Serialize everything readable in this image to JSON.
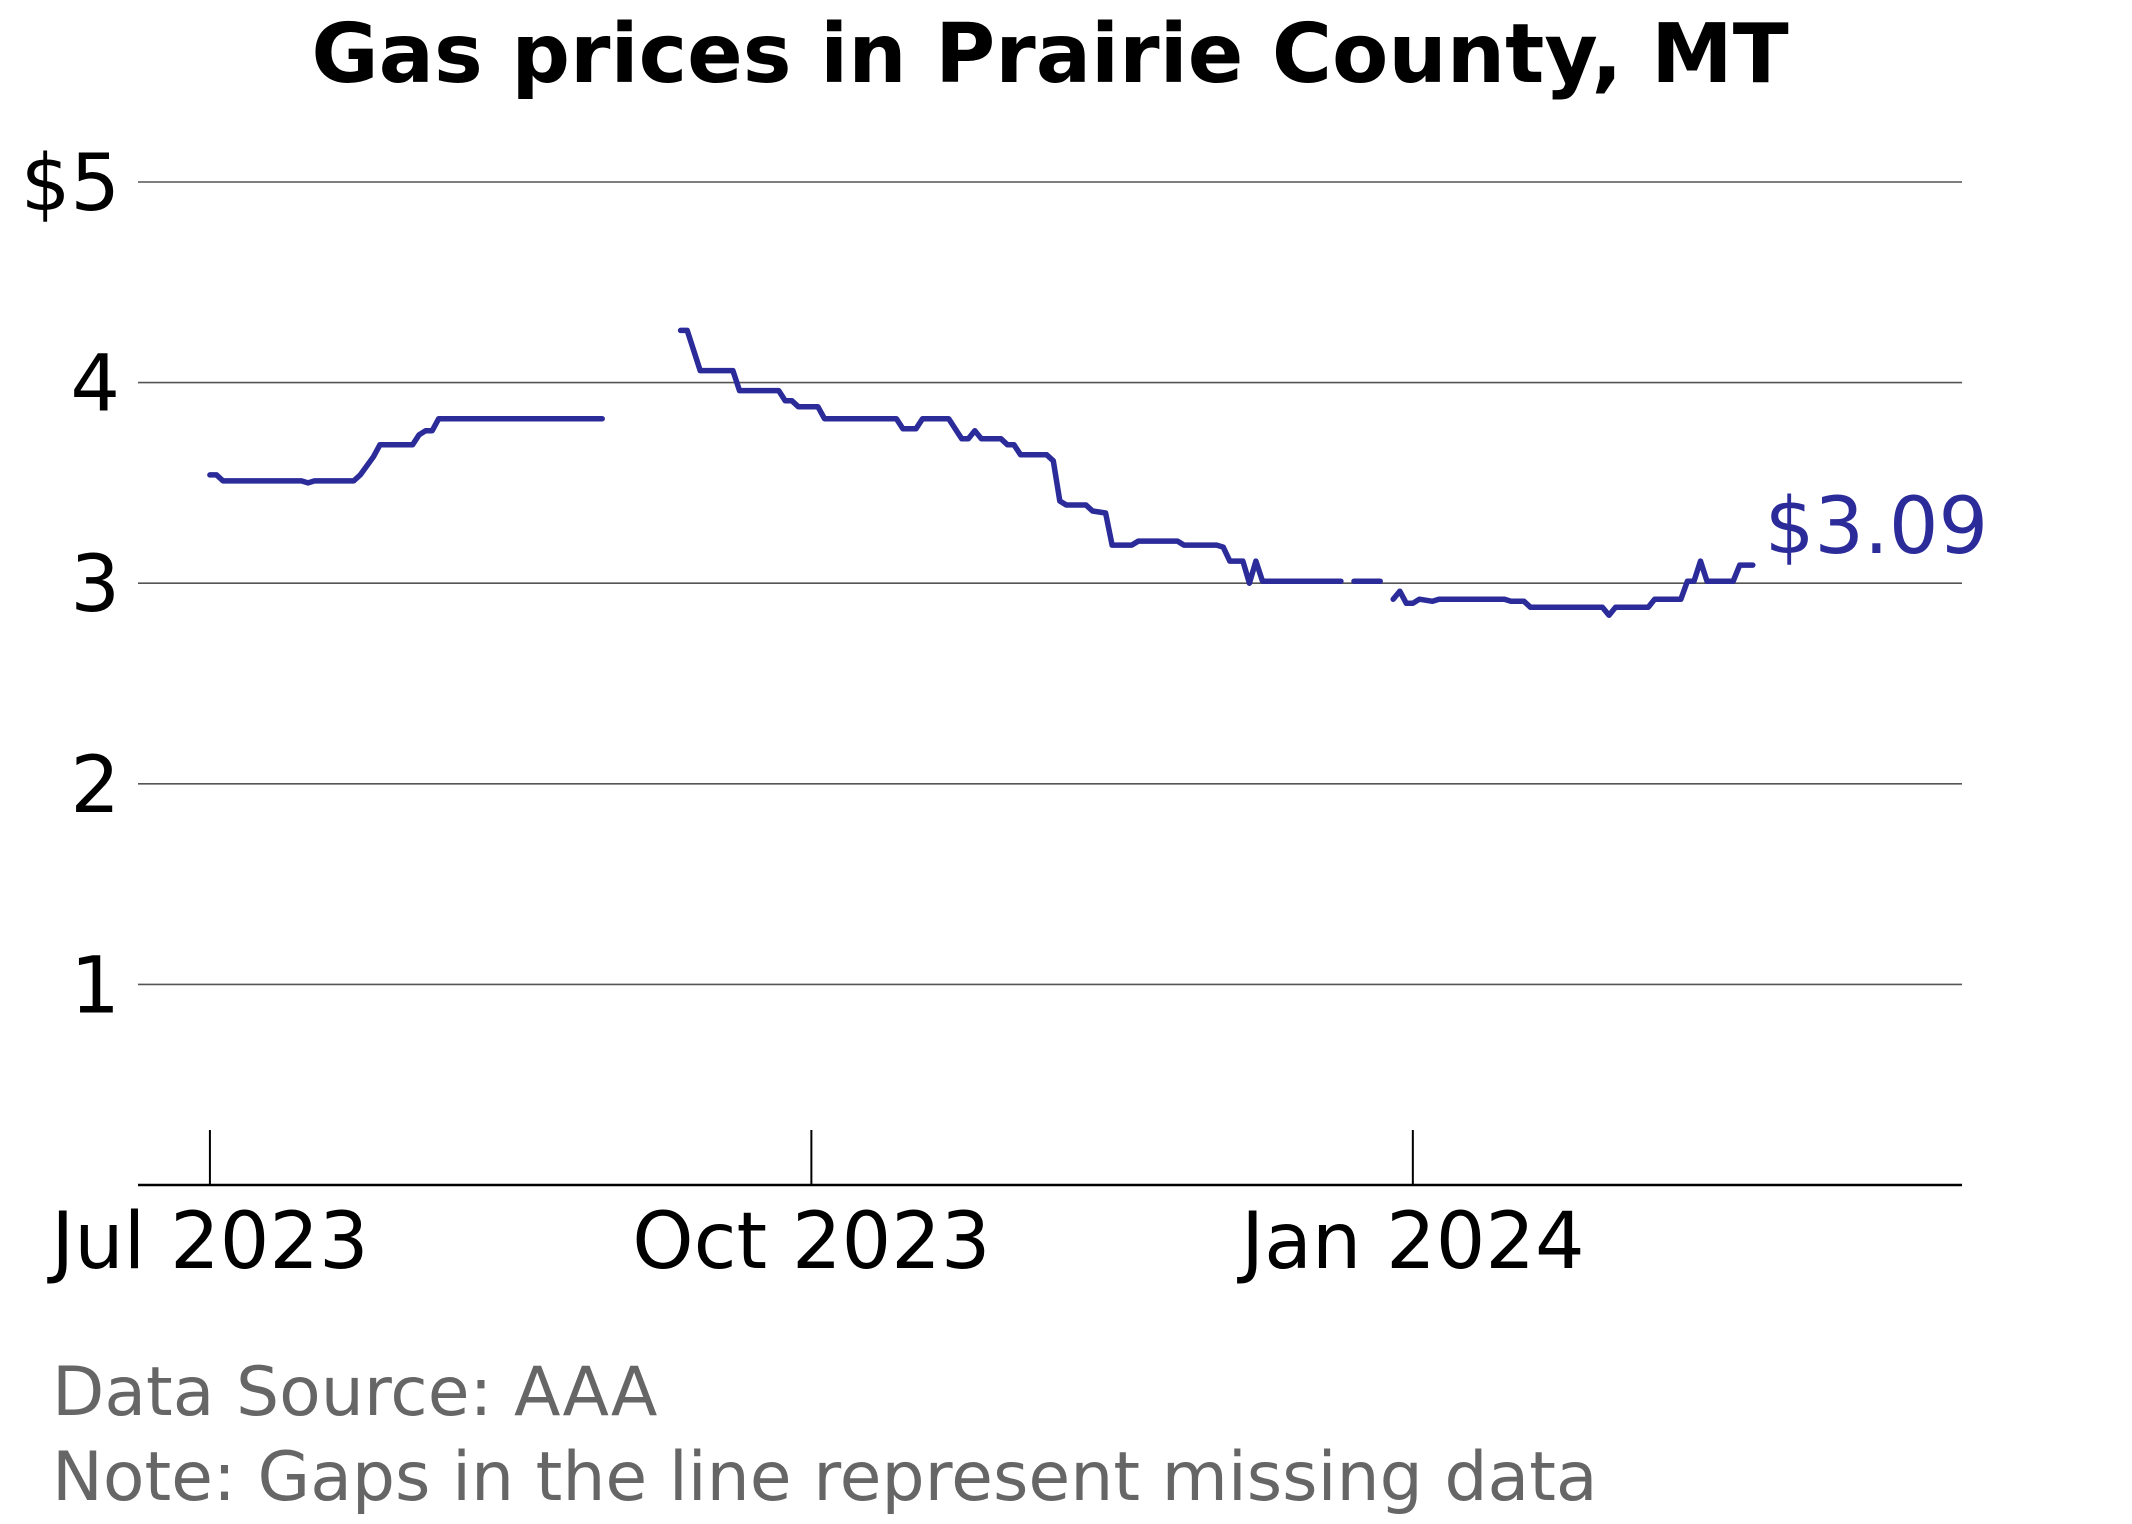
{
  "chart_data": {
    "type": "line",
    "title": "Gas prices in Prairie County, MT",
    "xlabel": "",
    "ylabel": "",
    "ylim": [
      0,
      5
    ],
    "y_ticks": [
      {
        "value": 5,
        "label": "$5"
      },
      {
        "value": 4,
        "label": "4"
      },
      {
        "value": 3,
        "label": "3"
      },
      {
        "value": 2,
        "label": "2"
      },
      {
        "value": 1,
        "label": "1"
      }
    ],
    "x_ticks": [
      {
        "date": "2023-07-01",
        "label": "Jul 2023"
      },
      {
        "date": "2023-10-01",
        "label": "Oct 2023"
      },
      {
        "date": "2024-01-01",
        "label": "Jan 2024"
      }
    ],
    "xlim": [
      "2023-06-20",
      "2024-03-25"
    ],
    "grid": "horizontal",
    "line_color": "#2b2b9a",
    "end_label": "$3.09",
    "series": [
      {
        "segments": [
          [
            [
              "2023-07-01",
              3.54
            ],
            [
              "2023-07-02",
              3.54
            ],
            [
              "2023-07-03",
              3.51
            ],
            [
              "2023-07-15",
              3.51
            ],
            [
              "2023-07-16",
              3.5
            ],
            [
              "2023-07-17",
              3.51
            ],
            [
              "2023-07-23",
              3.51
            ],
            [
              "2023-07-24",
              3.54
            ],
            [
              "2023-07-26",
              3.63
            ],
            [
              "2023-07-27",
              3.69
            ],
            [
              "2023-08-01",
              3.69
            ],
            [
              "2023-08-02",
              3.74
            ],
            [
              "2023-08-03",
              3.76
            ],
            [
              "2023-08-04",
              3.76
            ],
            [
              "2023-08-05",
              3.82
            ],
            [
              "2023-08-30",
              3.82
            ]
          ],
          [
            [
              "2023-09-11",
              4.26
            ],
            [
              "2023-09-12",
              4.26
            ],
            [
              "2023-09-14",
              4.06
            ],
            [
              "2023-09-19",
              4.06
            ],
            [
              "2023-09-20",
              3.96
            ],
            [
              "2023-09-26",
              3.96
            ],
            [
              "2023-09-27",
              3.91
            ],
            [
              "2023-09-28",
              3.91
            ],
            [
              "2023-09-29",
              3.88
            ],
            [
              "2023-10-02",
              3.88
            ],
            [
              "2023-10-03",
              3.82
            ],
            [
              "2023-10-14",
              3.82
            ],
            [
              "2023-10-15",
              3.77
            ],
            [
              "2023-10-17",
              3.77
            ],
            [
              "2023-10-18",
              3.82
            ],
            [
              "2023-10-22",
              3.82
            ],
            [
              "2023-10-24",
              3.72
            ],
            [
              "2023-10-25",
              3.72
            ],
            [
              "2023-10-26",
              3.76
            ],
            [
              "2023-10-27",
              3.72
            ],
            [
              "2023-10-30",
              3.72
            ],
            [
              "2023-10-31",
              3.69
            ],
            [
              "2023-11-01",
              3.69
            ],
            [
              "2023-11-02",
              3.64
            ],
            [
              "2023-11-06",
              3.64
            ],
            [
              "2023-11-07",
              3.61
            ],
            [
              "2023-11-08",
              3.41
            ],
            [
              "2023-11-09",
              3.39
            ],
            [
              "2023-11-12",
              3.39
            ],
            [
              "2023-11-13",
              3.36
            ],
            [
              "2023-11-15",
              3.35
            ],
            [
              "2023-11-16",
              3.19
            ],
            [
              "2023-11-19",
              3.19
            ],
            [
              "2023-11-20",
              3.21
            ],
            [
              "2023-11-22",
              3.21
            ],
            [
              "2023-11-26",
              3.21
            ],
            [
              "2023-11-27",
              3.19
            ],
            [
              "2023-12-02",
              3.19
            ],
            [
              "2023-12-03",
              3.18
            ],
            [
              "2023-12-04",
              3.11
            ],
            [
              "2023-12-06",
              3.11
            ],
            [
              "2023-12-07",
              3.0
            ],
            [
              "2023-12-08",
              3.11
            ],
            [
              "2023-12-09",
              3.01
            ],
            [
              "2023-12-21",
              3.01
            ]
          ],
          [
            [
              "2023-12-23",
              3.01
            ],
            [
              "2023-12-27",
              3.01
            ]
          ],
          [
            [
              "2023-12-29",
              2.92
            ],
            [
              "2023-12-30",
              2.96
            ],
            [
              "2023-12-31",
              2.9
            ],
            [
              "2024-01-01",
              2.9
            ],
            [
              "2024-01-02",
              2.92
            ],
            [
              "2024-01-04",
              2.91
            ],
            [
              "2024-01-05",
              2.92
            ],
            [
              "2024-01-15",
              2.92
            ],
            [
              "2024-01-16",
              2.91
            ],
            [
              "2024-01-18",
              2.91
            ],
            [
              "2024-01-19",
              2.88
            ],
            [
              "2024-01-30",
              2.88
            ],
            [
              "2024-01-31",
              2.84
            ],
            [
              "2024-02-01",
              2.88
            ],
            [
              "2024-02-06",
              2.88
            ],
            [
              "2024-02-07",
              2.92
            ],
            [
              "2024-02-11",
              2.92
            ],
            [
              "2024-02-12",
              3.01
            ],
            [
              "2024-02-13",
              3.01
            ],
            [
              "2024-02-14",
              3.11
            ],
            [
              "2024-02-15",
              3.01
            ],
            [
              "2024-02-19",
              3.01
            ],
            [
              "2024-02-20",
              3.09
            ],
            [
              "2024-02-22",
              3.09
            ]
          ]
        ]
      }
    ]
  },
  "footnote": {
    "source": "Data Source: AAA",
    "note": "Note: Gaps in the line represent missing data"
  }
}
